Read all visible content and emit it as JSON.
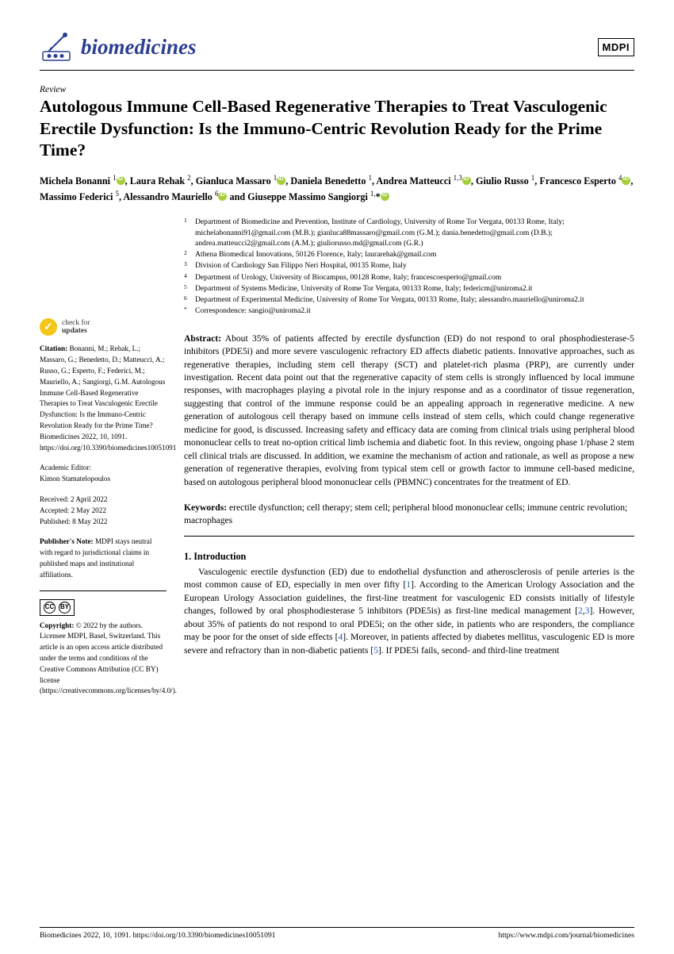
{
  "journal": {
    "name": "biomedicines",
    "name_color": "#2c3e8f",
    "publisher": "MDPI"
  },
  "article": {
    "type": "Review",
    "title": "Autologous Immune Cell-Based Regenerative Therapies to Treat Vasculogenic Erectile Dysfunction: Is the Immuno-Centric Revolution Ready for the Prime Time?"
  },
  "authors_html": "Michela Bonanni <sup>1</sup><span class='orcid'></span>, Laura Rehak <sup>2</sup>, Gianluca Massaro <sup>1</sup><span class='orcid'></span>, Daniela Benedetto <sup>1</sup>, Andrea Matteucci <sup>1,3</sup><span class='orcid'></span>, Giulio Russo <sup>1</sup>, Francesco Esperto <sup>4</sup><span class='orcid'></span>, Massimo Federici <sup>5</sup>, Alessandro Mauriello <sup>6</sup><span class='orcid'></span> and Giuseppe Massimo Sangiorgi <sup>1,</sup>*<span class='orcid'></span>",
  "affiliations": [
    {
      "n": "1",
      "text": "Department of Biomedicine and Prevention, Institute of Cardiology, University of Rome Tor Vergata, 00133 Rome, Italy; michelabonanni91@gmail.com (M.B.); gianluca88massaro@gmail.com (G.M.); dania.benedetto@gmail.com (D.B.); andrea.matteucci2@gmail.com (A.M.); giuliorusso.md@gmail.com (G.R.)"
    },
    {
      "n": "2",
      "text": "Athena Biomedical Innovations, 50126 Florence, Italy; laurarehak@gmail.com"
    },
    {
      "n": "3",
      "text": "Division of Cardiology San Filippo Neri Hospital, 00135 Rome, Italy"
    },
    {
      "n": "4",
      "text": "Department of Urology, University of Biocampus, 00128 Rome, Italy; francescoesperto@gmail.com"
    },
    {
      "n": "5",
      "text": "Department of Systems Medicine, University of Rome Tor Vergata, 00133 Rome, Italy; federicm@uniroma2.it"
    },
    {
      "n": "6",
      "text": "Department of Experimental Medicine, University of Rome Tor Vergata, 00133 Rome, Italy; alessandro.mauriello@uniroma2.it"
    },
    {
      "n": "*",
      "text": "Correspondence: sangio@uniroma2.it"
    }
  ],
  "sidebar": {
    "check_updates_l1": "check for",
    "check_updates_l2": "updates",
    "citation_label": "Citation:",
    "citation": "Bonanni, M.; Rehak, L.; Massaro, G.; Benedetto, D.; Matteucci, A.; Russo, G.; Esperto, F.; Federici, M.; Mauriello, A.; Sangiorgi, G.M. Autologous Immune Cell-Based Regenerative Therapies to Treat Vasculogenic Erectile Dysfunction: Is the Immuno-Centric Revolution Ready for the Prime Time? Biomedicines 2022, 10, 1091. https://doi.org/10.3390/biomedicines10051091",
    "editor_label": "Academic Editor:",
    "editor": "Kimon Stamatelopoulos",
    "received": "Received: 2 April 2022",
    "accepted": "Accepted: 2 May 2022",
    "published": "Published: 8 May 2022",
    "pub_note_label": "Publisher's Note:",
    "pub_note": "MDPI stays neutral with regard to jurisdictional claims in published maps and institutional affiliations.",
    "copyright_label": "Copyright:",
    "copyright": "© 2022 by the authors. Licensee MDPI, Basel, Switzerland. This article is an open access article distributed under the terms and conditions of the Creative Commons Attribution (CC BY) license (https://creativecommons.org/licenses/by/4.0/)."
  },
  "abstract": {
    "label": "Abstract:",
    "text": "About 35% of patients affected by erectile dysfunction (ED) do not respond to oral phosphodiesterase-5 inhibitors (PDE5i) and more severe vasculogenic refractory ED affects diabetic patients. Innovative approaches, such as regenerative therapies, including stem cell therapy (SCT) and platelet-rich plasma (PRP), are currently under investigation. Recent data point out that the regenerative capacity of stem cells is strongly influenced by local immune responses, with macrophages playing a pivotal role in the injury response and as a coordinator of tissue regeneration, suggesting that control of the immune response could be an appealing approach in regenerative medicine. A new generation of autologous cell therapy based on immune cells instead of stem cells, which could change regenerative medicine for good, is discussed. Increasing safety and efficacy data are coming from clinical trials using peripheral blood mononuclear cells to treat no-option critical limb ischemia and diabetic foot. In this review, ongoing phase 1/phase 2 stem cell clinical trials are discussed. In addition, we examine the mechanism of action and rationale, as well as propose a new generation of regenerative therapies, evolving from typical stem cell or growth factor to immune cell-based medicine, based on autologous peripheral blood mononuclear cells (PBMNC) concentrates for the treatment of ED."
  },
  "keywords": {
    "label": "Keywords:",
    "text": "erectile dysfunction; cell therapy; stem cell; peripheral blood mononuclear cells; immune centric revolution; macrophages"
  },
  "section1": {
    "heading": "1. Introduction",
    "body_html": "Vasculogenic erectile dysfunction (ED) due to endothelial dysfunction and atherosclerosis of penile arteries is the most common cause of ED, especially in men over fifty [<span class='ref'>1</span>]. According to the American Urology Association and the European Urology Association guidelines, the first-line treatment for vasculogenic ED consists initially of lifestyle changes, followed by oral phosphodiesterase 5 inhibitors (PDE5is) as first-line medical management [<span class='ref'>2</span>,<span class='ref'>3</span>]. However, about 35% of patients do not respond to oral PDE5i; on the other side, in patients who are responders, the compliance may be poor for the onset of side effects [<span class='ref'>4</span>]. Moreover, in patients affected by diabetes mellitus, vasculogenic ED is more severe and refractory than in non-diabetic patients [<span class='ref'>5</span>]. If PDE5i fails, second- and third-line treatment"
  },
  "footer": {
    "left": "Biomedicines 2022, 10, 1091. https://doi.org/10.3390/biomedicines10051091",
    "right": "https://www.mdpi.com/journal/biomedicines"
  }
}
